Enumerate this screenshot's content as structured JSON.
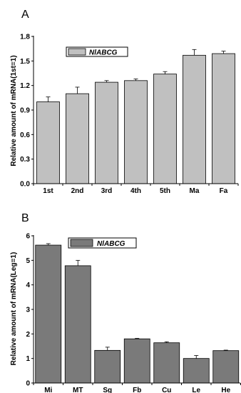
{
  "chart_data": [
    {
      "panel": "A",
      "type": "bar",
      "categories": [
        "1st",
        "2nd",
        "3rd",
        "4th",
        "5th",
        "Ma",
        "Fa"
      ],
      "values": [
        1.0,
        1.1,
        1.24,
        1.26,
        1.34,
        1.57,
        1.59
      ],
      "errors": [
        0.06,
        0.08,
        0.02,
        0.02,
        0.03,
        0.07,
        0.03
      ],
      "ylabel": "Relative amount of mRNA(1st=1)",
      "ylim": [
        0,
        1.8
      ],
      "yticks": [
        "0.0",
        "0.3",
        "0.6",
        "0.9",
        "1.2",
        "1.5",
        "1.8"
      ],
      "legend": "NlABCG",
      "legend_position": "top-left",
      "bar_color": "#c0c0c0",
      "grid": false
    },
    {
      "panel": "B",
      "type": "bar",
      "categories": [
        "Mi",
        "MT",
        "Sg",
        "Fb",
        "Cu",
        "Le",
        "He"
      ],
      "values": [
        5.62,
        4.78,
        1.33,
        1.8,
        1.64,
        1.0,
        1.32
      ],
      "errors": [
        0.06,
        0.22,
        0.13,
        0.02,
        0.04,
        0.12,
        0.02
      ],
      "ylabel": "Relative amount of mRNA(Leg=1)",
      "ylim": [
        0,
        6
      ],
      "yticks": [
        "0",
        "1",
        "2",
        "3",
        "4",
        "5",
        "6"
      ],
      "legend": "NlABCG",
      "legend_position": "top-left",
      "bar_color": "#7a7a7a",
      "grid": false
    }
  ]
}
